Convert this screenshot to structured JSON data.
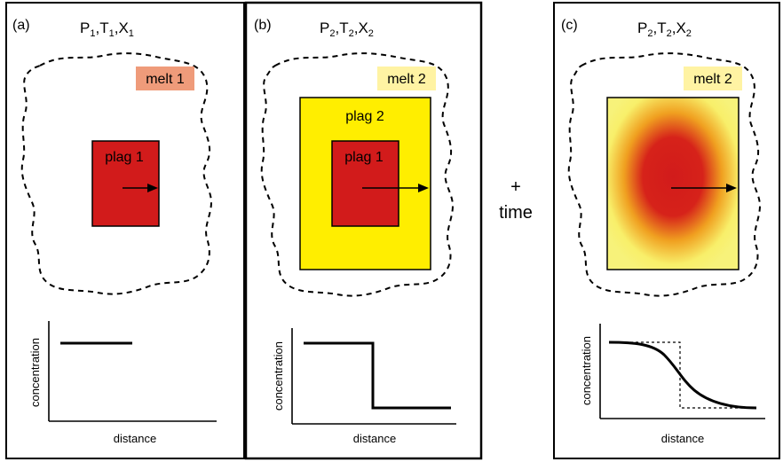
{
  "panels": [
    {
      "id": "a",
      "letter": "(a)",
      "conditions": [
        "P",
        "1",
        "T",
        "1",
        "X",
        "1"
      ],
      "melt_label": "melt 1",
      "melt_label_color": "#ef9b7a",
      "crystals": [
        {
          "label": "plag 1",
          "color": "#d21b1b"
        }
      ],
      "profile": {
        "xlabel": "distance",
        "ylabel": "concentration",
        "shape": "flat",
        "value": 1.0
      }
    },
    {
      "id": "b",
      "letter": "(b)",
      "conditions": [
        "P",
        "2",
        "T",
        "2",
        "X",
        "2"
      ],
      "melt_label": "melt 2",
      "melt_label_color": "#fff3a3",
      "crystals": [
        {
          "label": "plag 2",
          "color": "#ffee00"
        },
        {
          "label": "plag 1",
          "color": "#d21b1b"
        }
      ],
      "profile": {
        "xlabel": "distance",
        "ylabel": "concentration",
        "shape": "step",
        "high": 1.0,
        "low": 0.0
      }
    },
    {
      "id": "c",
      "letter": "(c)",
      "conditions": [
        "P",
        "2",
        "T",
        "2",
        "X",
        "2"
      ],
      "melt_label": "melt 2",
      "melt_label_color": "#fff3a3",
      "crystals": [
        {
          "label": "",
          "color": "#d21b1b",
          "rim_color": "#f8f27a",
          "diffused": true
        }
      ],
      "profile": {
        "xlabel": "distance",
        "ylabel": "concentration",
        "shape": "diffused-step",
        "reference": "dotted-step"
      }
    }
  ],
  "between": {
    "plus": "+",
    "time": "time"
  },
  "colors": {
    "core": "#d21b1b",
    "rim": "#ffee00",
    "melt1_box": "#ef9b7a",
    "melt2_box": "#fff3a3"
  }
}
